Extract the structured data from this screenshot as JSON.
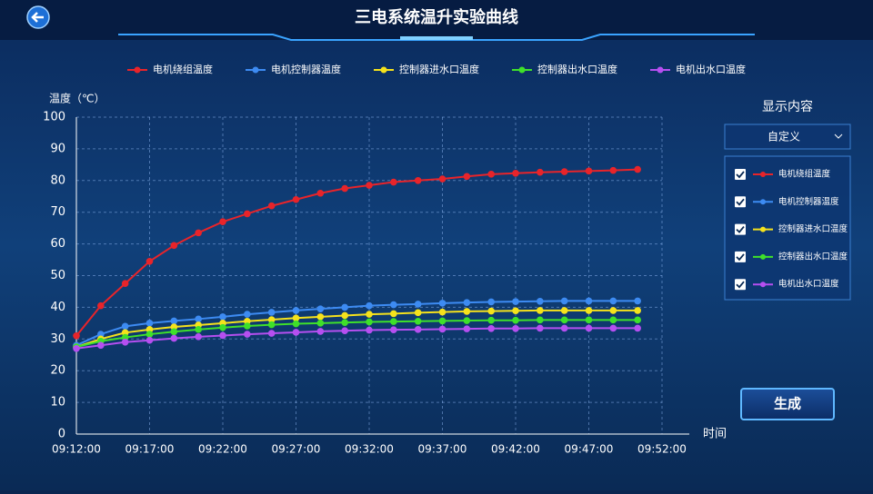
{
  "header": {
    "title": "三电系统温升实验曲线"
  },
  "chart_data": {
    "type": "line",
    "y_label": "温度（℃）",
    "x_label": "时间",
    "x": [
      "09:12:00",
      "09:13:40",
      "09:15:20",
      "09:17:00",
      "09:18:40",
      "09:20:20",
      "09:22:00",
      "09:23:40",
      "09:25:20",
      "09:27:00",
      "09:28:40",
      "09:30:20",
      "09:32:00",
      "09:33:40",
      "09:35:20",
      "09:37:00",
      "09:38:40",
      "09:40:20",
      "09:42:00",
      "09:43:40",
      "09:45:20",
      "09:47:00",
      "09:48:40",
      "09:50:20"
    ],
    "xlim": [
      "09:12:00",
      "09:52:00"
    ],
    "xticks": [
      "09:12:00",
      "09:17:00",
      "09:22:00",
      "09:27:00",
      "09:32:00",
      "09:37:00",
      "09:42:00",
      "09:47:00",
      "09:52:00"
    ],
    "ylim": [
      0,
      100
    ],
    "yticks": [
      0,
      10,
      20,
      30,
      40,
      50,
      60,
      70,
      80,
      90,
      100
    ],
    "grid": true,
    "series": [
      {
        "name": "电机绕组温度",
        "color": "#e8242a",
        "values": [
          31,
          40.5,
          47.5,
          54.5,
          59.5,
          63.5,
          67,
          69.5,
          72,
          74,
          76,
          77.5,
          78.5,
          79.5,
          80,
          80.5,
          81.3,
          82,
          82.3,
          82.6,
          82.8,
          83,
          83.2,
          83.5
        ]
      },
      {
        "name": "电机控制器温度",
        "color": "#3d8bf2",
        "values": [
          28,
          31.5,
          34,
          35,
          35.7,
          36.3,
          37,
          37.8,
          38.4,
          39,
          39.5,
          40,
          40.5,
          40.8,
          41,
          41.3,
          41.5,
          41.7,
          41.8,
          41.9,
          42,
          42,
          42,
          42
        ]
      },
      {
        "name": "控制器进水口温度",
        "color": "#f5e21c",
        "values": [
          27.5,
          30,
          32,
          33,
          33.8,
          34.4,
          35,
          35.6,
          36.1,
          36.6,
          37,
          37.4,
          37.8,
          38,
          38.3,
          38.5,
          38.7,
          38.8,
          38.9,
          39,
          39,
          39,
          39,
          39
        ]
      },
      {
        "name": "控制器出水口温度",
        "color": "#3fe02a",
        "values": [
          27.5,
          29.3,
          30.5,
          31.5,
          32.3,
          33,
          33.6,
          34.1,
          34.5,
          34.8,
          35,
          35.2,
          35.4,
          35.5,
          35.6,
          35.7,
          35.8,
          35.9,
          35.9,
          36,
          36,
          36,
          36,
          36
        ]
      },
      {
        "name": "电机出水口温度",
        "color": "#b54ff0",
        "values": [
          27,
          28,
          29,
          29.6,
          30.2,
          30.7,
          31.1,
          31.5,
          31.8,
          32.1,
          32.4,
          32.6,
          32.8,
          32.9,
          33,
          33.1,
          33.2,
          33.3,
          33.3,
          33.4,
          33.4,
          33.4,
          33.4,
          33.4
        ]
      }
    ]
  },
  "panel": {
    "title": "显示内容",
    "dropdown": "自定义",
    "button": "生成"
  }
}
